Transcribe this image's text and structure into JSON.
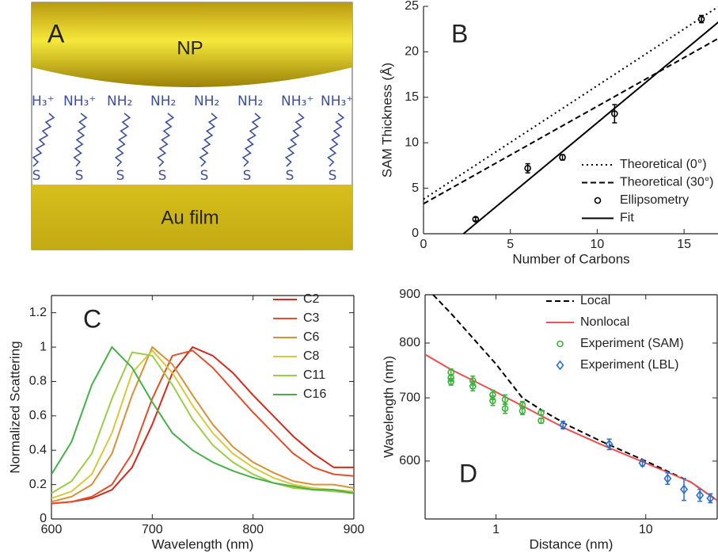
{
  "diagram": {
    "panel_label": "A",
    "top_label": "NP",
    "bottom_label": "Au film",
    "head_groups": [
      "H₃⁺",
      "NH₃⁺",
      "NH₂",
      "NH₂",
      "NH₂",
      "NH₂",
      "NH₃⁺",
      "NH₃⁺"
    ],
    "anchors": [
      "S",
      "S",
      "S",
      "S",
      "S",
      "S",
      "S",
      "S"
    ]
  },
  "chart_data": [
    {
      "type": "line",
      "panel_label": "B",
      "x_label": "Number of Carbons",
      "y_label": "SAM Thickness (Å)",
      "xlim": [
        0,
        17
      ],
      "ylim": [
        0,
        25
      ],
      "xticks": [
        0,
        5,
        10,
        15
      ],
      "yticks": [
        0,
        5,
        10,
        15,
        20,
        25
      ],
      "box": false,
      "legend": "lower right",
      "series": [
        {
          "name": "Theoretical (0°)",
          "color": "#000000",
          "style": "dotted",
          "x": [
            0,
            17
          ],
          "values": [
            3.8,
            25
          ]
        },
        {
          "name": "Theoretical (30°)",
          "color": "#000000",
          "style": "dashed",
          "x": [
            0,
            17
          ],
          "values": [
            3.3,
            21.5
          ]
        },
        {
          "name": "Ellipsometry",
          "color": "#000000",
          "marker": "circle",
          "x": [
            3,
            6,
            8,
            11,
            16
          ],
          "values": [
            1.6,
            7.2,
            8.4,
            13.2,
            23.6
          ],
          "errors": [
            0.2,
            0.5,
            0.3,
            1,
            0.4
          ]
        },
        {
          "name": "Fit",
          "color": "#000000",
          "style": "solid",
          "x": [
            2.3,
            17
          ],
          "values": [
            0,
            23.3
          ]
        }
      ]
    },
    {
      "type": "line",
      "panel_label": "C",
      "x_label": "Wavelength (nm)",
      "y_label": "Normalized Scattering",
      "xlim": [
        600,
        900
      ],
      "ylim": [
        0,
        1.3
      ],
      "xticks": [
        600,
        700,
        800,
        900
      ],
      "yticks": [
        0,
        0.2,
        0.4,
        0.6,
        0.8,
        1,
        1.2
      ],
      "box": true,
      "legend": "upper right",
      "x": [
        600,
        620,
        640,
        660,
        680,
        700,
        720,
        740,
        760,
        780,
        800,
        820,
        840,
        860,
        880,
        900
      ],
      "series": [
        {
          "name": "C2",
          "color": "#d42a1e",
          "style": "solid",
          "values": [
            0.09,
            0.1,
            0.12,
            0.17,
            0.3,
            0.55,
            0.85,
            1.0,
            0.95,
            0.85,
            0.72,
            0.6,
            0.48,
            0.38,
            0.3,
            0.3
          ]
        },
        {
          "name": "C3",
          "color": "#e0502a",
          "style": "solid",
          "values": [
            0.09,
            0.1,
            0.13,
            0.2,
            0.38,
            0.7,
            0.95,
            0.98,
            0.88,
            0.75,
            0.62,
            0.5,
            0.38,
            0.3,
            0.26,
            0.25
          ]
        },
        {
          "name": "C6",
          "color": "#d8913a",
          "style": "solid",
          "values": [
            0.1,
            0.13,
            0.2,
            0.38,
            0.72,
            1.0,
            0.9,
            0.72,
            0.55,
            0.42,
            0.33,
            0.27,
            0.22,
            0.2,
            0.2,
            0.18
          ]
        },
        {
          "name": "C8",
          "color": "#d6c93c",
          "style": "solid",
          "values": [
            0.12,
            0.16,
            0.26,
            0.5,
            0.85,
            0.98,
            0.85,
            0.66,
            0.5,
            0.38,
            0.3,
            0.24,
            0.2,
            0.18,
            0.17,
            0.16
          ]
        },
        {
          "name": "C11",
          "color": "#9ccd48",
          "style": "solid",
          "values": [
            0.15,
            0.22,
            0.38,
            0.7,
            0.97,
            0.95,
            0.78,
            0.58,
            0.43,
            0.33,
            0.26,
            0.21,
            0.18,
            0.17,
            0.16,
            0.15
          ]
        },
        {
          "name": "C16",
          "color": "#46b04a",
          "style": "solid",
          "values": [
            0.26,
            0.45,
            0.78,
            1.0,
            0.88,
            0.68,
            0.5,
            0.4,
            0.33,
            0.28,
            0.24,
            0.21,
            0.19,
            0.17,
            0.17,
            0.15
          ]
        }
      ]
    },
    {
      "type": "line",
      "panel_label": "D",
      "x_label": "Distance (nm)",
      "y_label": "Wavelength (nm)",
      "xlim": [
        0.336,
        30
      ],
      "ylim": [
        521,
        900
      ],
      "xscale": "log",
      "yscale": "log",
      "xticks": [
        1,
        10
      ],
      "yticks": [
        600,
        700,
        800,
        900
      ],
      "box": true,
      "legend": "upper right",
      "series": [
        {
          "name": "Local",
          "color": "#000000",
          "style": "dashed",
          "x": [
            0.38,
            0.5,
            0.7,
            1,
            1.5,
            2,
            3,
            5,
            10,
            20,
            30
          ],
          "values": [
            900,
            860,
            810,
            760,
            700,
            680,
            655,
            630,
            600,
            570,
            545
          ]
        },
        {
          "name": "Nonlocal",
          "color": "#f05050",
          "style": "solid",
          "x": [
            0.336,
            0.5,
            1,
            2,
            3,
            5,
            10,
            20,
            30
          ],
          "values": [
            778,
            750,
            710,
            670,
            648,
            625,
            597,
            570,
            545
          ]
        },
        {
          "name": "Experiment (SAM)",
          "color": "#3cb43c",
          "marker": "circle",
          "x": [
            0.5,
            0.5,
            0.5,
            0.7,
            0.7,
            0.95,
            0.95,
            1.15,
            1.15,
            1.5,
            1.5,
            2,
            2
          ],
          "values": [
            745,
            735,
            728,
            730,
            720,
            705,
            695,
            697,
            682,
            688,
            678,
            675,
            662
          ],
          "errors": [
            6,
            6,
            6,
            8,
            8,
            8,
            8,
            8,
            8,
            6,
            6,
            4,
            4
          ]
        },
        {
          "name": "Experiment (LBL)",
          "color": "#2a70c8",
          "marker": "diamond",
          "x": [
            2.8,
            5.7,
            9.5,
            14,
            18,
            23,
            27
          ],
          "values": [
            655,
            625,
            597,
            575,
            560,
            552,
            548
          ],
          "errors": [
            6,
            8,
            4,
            8,
            15,
            8,
            6
          ]
        }
      ]
    }
  ]
}
